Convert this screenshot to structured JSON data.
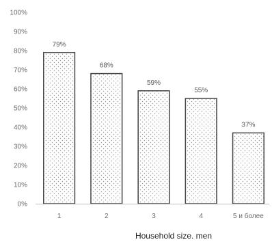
{
  "chart_data": {
    "type": "bar",
    "categories": [
      "1",
      "2",
      "3",
      "4",
      "5 и более"
    ],
    "values": [
      79,
      68,
      59,
      55,
      37
    ],
    "data_labels": [
      "79%",
      "68%",
      "59%",
      "55%",
      "37%"
    ],
    "title": "",
    "xlabel": "Household size. men",
    "ylabel": "",
    "ylim": [
      0,
      100
    ],
    "y_ticks": [
      0,
      10,
      20,
      30,
      40,
      50,
      60,
      70,
      80,
      90,
      100
    ],
    "y_tick_labels": [
      "0%",
      "10%",
      "20%",
      "30%",
      "40%",
      "50%",
      "60%",
      "70%",
      "80%",
      "90%",
      "100%"
    ],
    "grid": false,
    "legend": "none",
    "bar_fill": "#ffffff",
    "bar_stroke": "#444444",
    "bar_pattern": "dotted",
    "pattern_dot_color": "#9a9a9a",
    "axis_color": "#bfbfbf"
  }
}
